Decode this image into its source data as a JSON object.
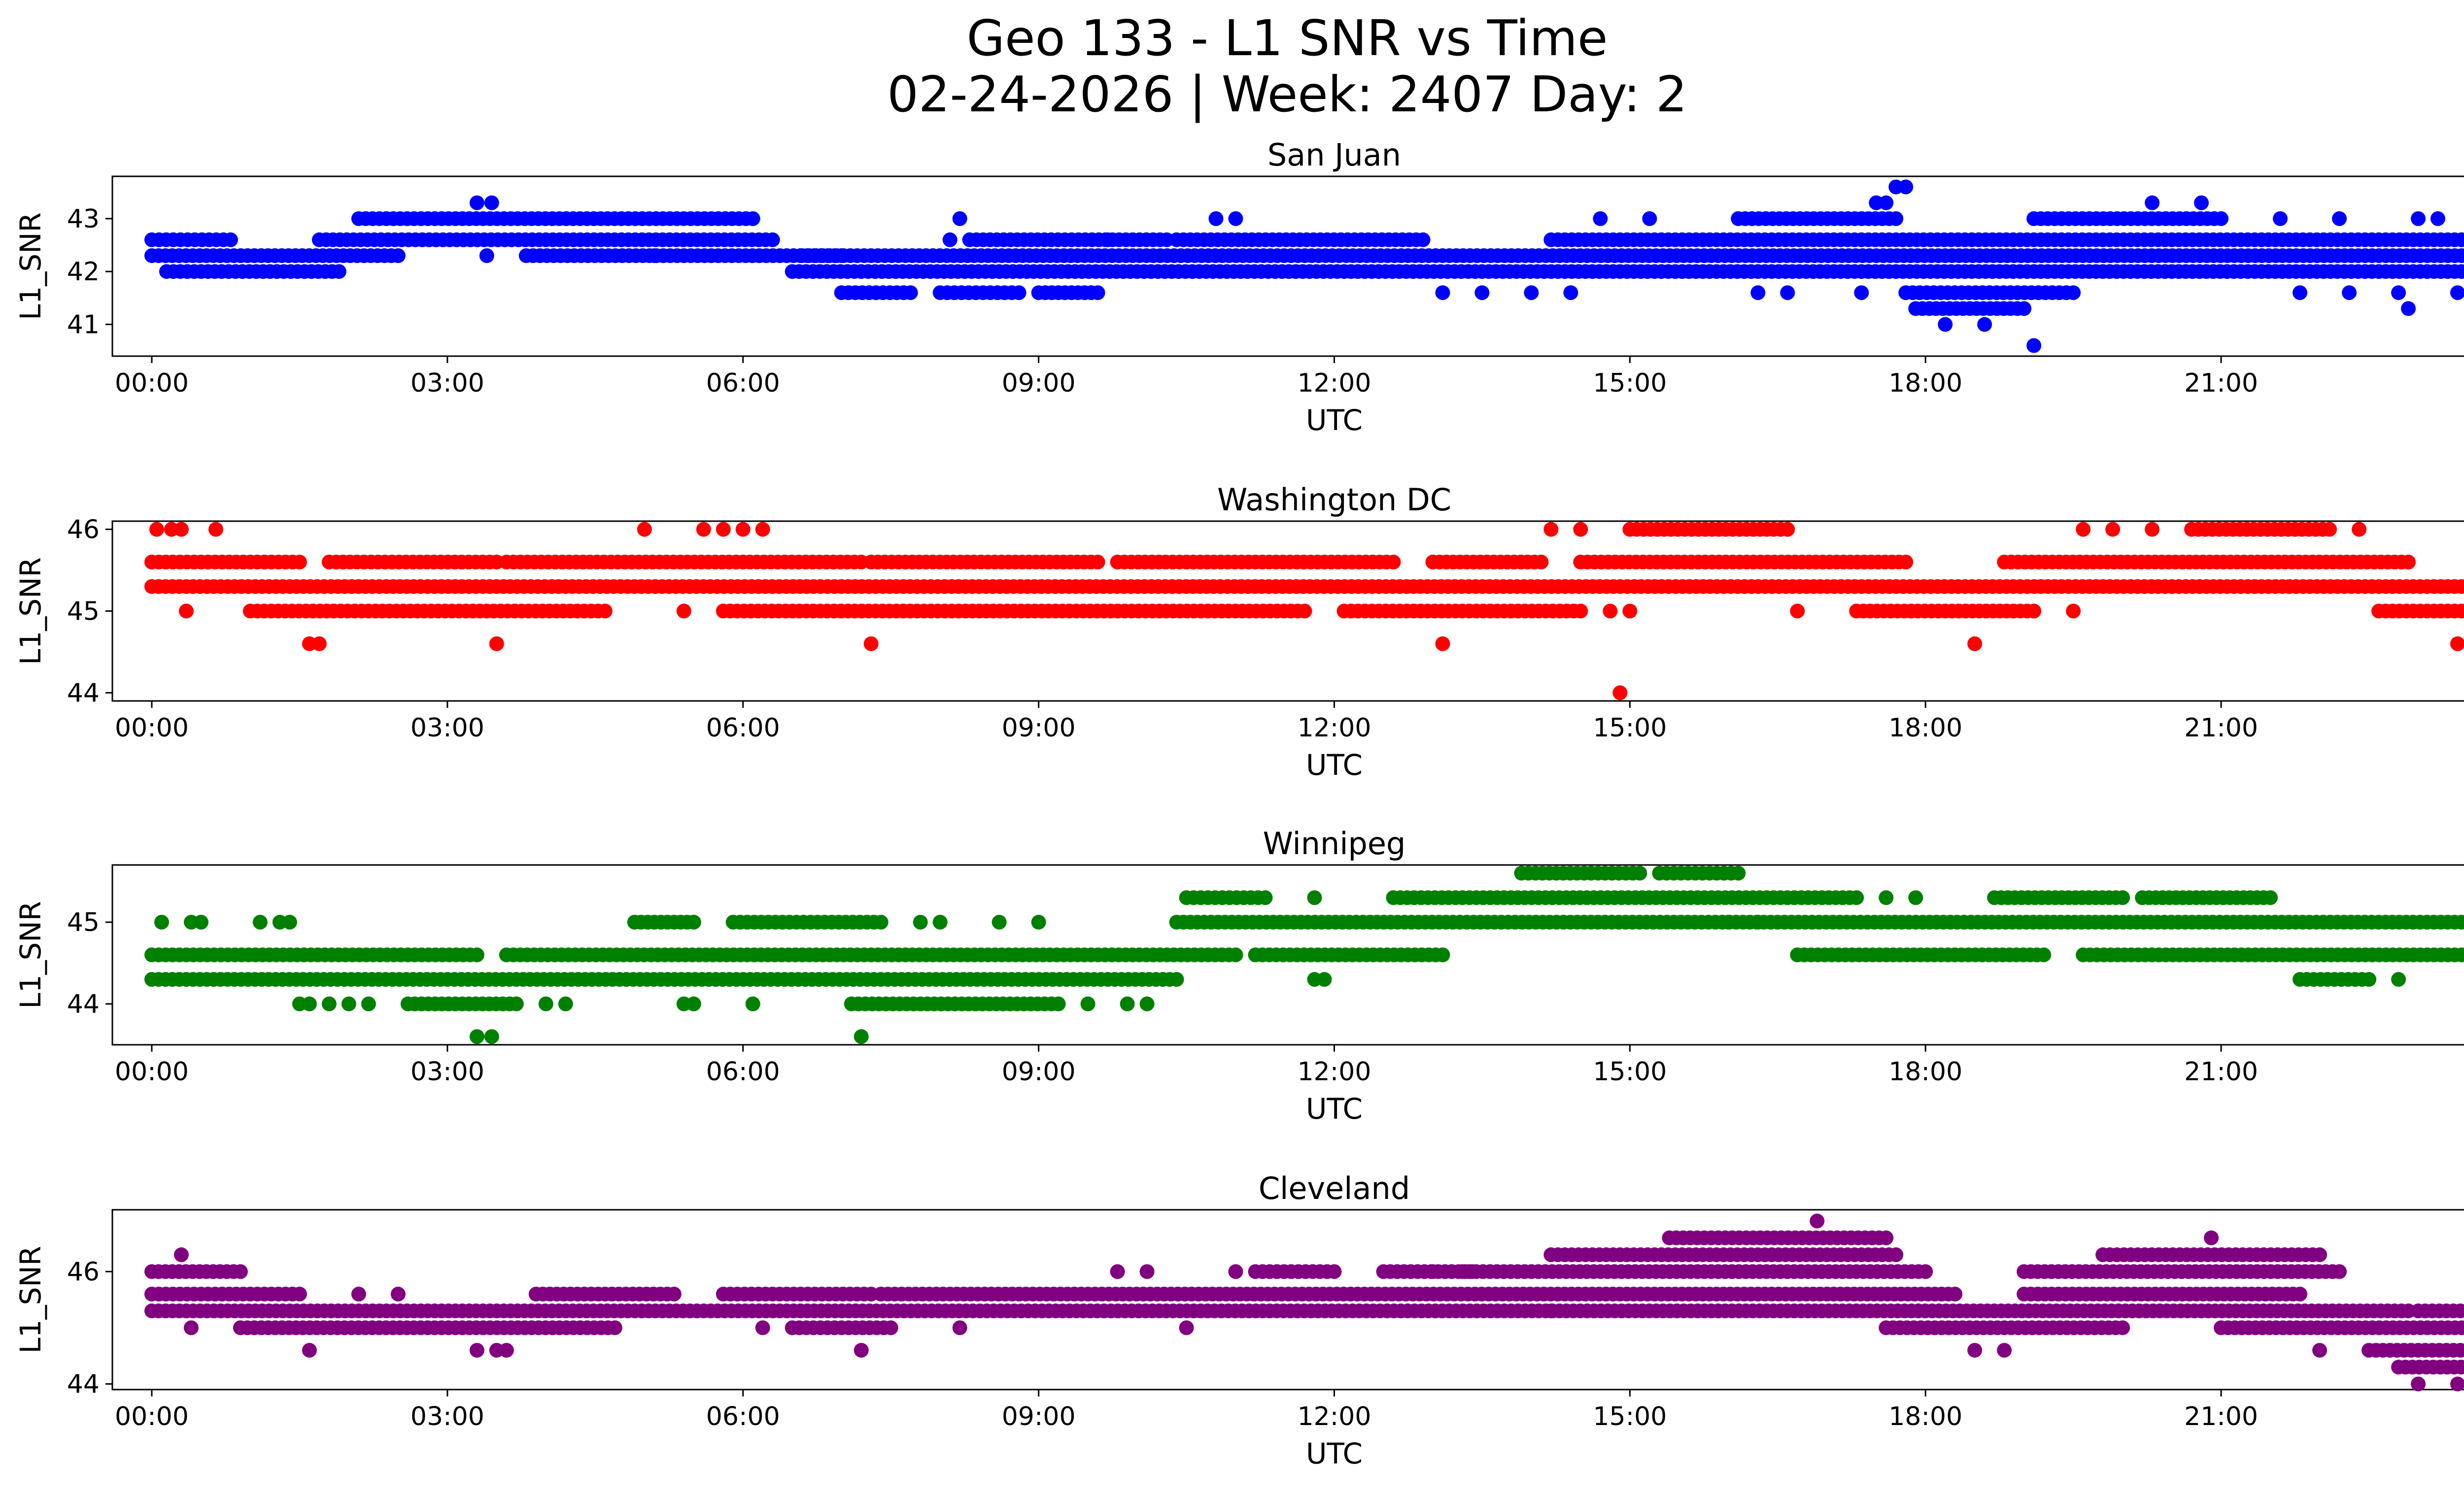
{
  "figure": {
    "title_line1": "Geo 133 - L1 SNR vs Time",
    "title_line2": "02-24-2026 | Week: 2407 Day: 2"
  },
  "chart_data": [
    {
      "type": "scatter",
      "title": "San Juan",
      "xlabel": "UTC",
      "ylabel": "L1_SNR",
      "color": "#0000ff",
      "xlim": [
        -0.4,
        24.4
      ],
      "ylim": [
        40.4,
        43.8
      ],
      "xticks": [
        {
          "value": 0,
          "label": "00:00"
        },
        {
          "value": 3,
          "label": "03:00"
        },
        {
          "value": 6,
          "label": "06:00"
        },
        {
          "value": 9,
          "label": "09:00"
        },
        {
          "value": 12,
          "label": "12:00"
        },
        {
          "value": 15,
          "label": "15:00"
        },
        {
          "value": 18,
          "label": "18:00"
        },
        {
          "value": 21,
          "label": "21:00"
        },
        {
          "value": 24,
          "label": "00:00"
        }
      ],
      "yticks": [
        {
          "value": 41,
          "label": "41"
        },
        {
          "value": 42,
          "label": "42"
        },
        {
          "value": 43,
          "label": "43"
        }
      ],
      "bands": [
        {
          "y": 42.6,
          "x_start": 0.0,
          "x_end": 0.8
        },
        {
          "y": 42.3,
          "x_start": 0.0,
          "x_end": 2.5
        },
        {
          "y": 42.0,
          "x_start": 0.15,
          "x_end": 1.9
        },
        {
          "y": 42.6,
          "x_start": 1.7,
          "x_end": 6.3
        },
        {
          "y": 43.0,
          "x_start": 2.1,
          "x_end": 6.1
        },
        {
          "y": 42.3,
          "x_start": 3.8,
          "x_end": 7.0
        },
        {
          "y": 42.0,
          "x_start": 6.5,
          "x_end": 24.0
        },
        {
          "y": 42.3,
          "x_start": 6.6,
          "x_end": 24.0
        },
        {
          "y": 42.6,
          "x_start": 8.3,
          "x_end": 10.3
        },
        {
          "y": 42.6,
          "x_start": 10.4,
          "x_end": 12.9
        },
        {
          "y": 42.6,
          "x_start": 14.2,
          "x_end": 24.0
        },
        {
          "y": 41.6,
          "x_start": 7.0,
          "x_end": 7.7
        },
        {
          "y": 41.6,
          "x_start": 8.0,
          "x_end": 8.8
        },
        {
          "y": 41.6,
          "x_start": 9.0,
          "x_end": 9.6
        },
        {
          "y": 41.6,
          "x_start": 17.8,
          "x_end": 19.5
        },
        {
          "y": 41.3,
          "x_start": 17.9,
          "x_end": 19.0
        },
        {
          "y": 43.0,
          "x_start": 16.1,
          "x_end": 17.7
        },
        {
          "y": 43.0,
          "x_start": 19.1,
          "x_end": 21.0
        }
      ],
      "points": [
        {
          "x": 3.3,
          "y": 43.3
        },
        {
          "x": 3.45,
          "y": 43.3
        },
        {
          "x": 3.4,
          "y": 42.3
        },
        {
          "x": 5.1,
          "y": 42.3
        },
        {
          "x": 8.2,
          "y": 43.0
        },
        {
          "x": 8.1,
          "y": 42.6
        },
        {
          "x": 9.7,
          "y": 42.6
        },
        {
          "x": 10.8,
          "y": 43.0
        },
        {
          "x": 11.0,
          "y": 43.0
        },
        {
          "x": 14.7,
          "y": 43.0
        },
        {
          "x": 15.2,
          "y": 43.0
        },
        {
          "x": 13.1,
          "y": 41.6
        },
        {
          "x": 13.5,
          "y": 41.6
        },
        {
          "x": 14.0,
          "y": 41.6
        },
        {
          "x": 14.4,
          "y": 41.6
        },
        {
          "x": 16.3,
          "y": 41.6
        },
        {
          "x": 16.6,
          "y": 41.6
        },
        {
          "x": 17.35,
          "y": 41.6
        },
        {
          "x": 17.5,
          "y": 43.3
        },
        {
          "x": 17.7,
          "y": 43.6
        },
        {
          "x": 17.8,
          "y": 43.6
        },
        {
          "x": 17.6,
          "y": 43.3
        },
        {
          "x": 18.2,
          "y": 41.0
        },
        {
          "x": 18.6,
          "y": 41.0
        },
        {
          "x": 19.1,
          "y": 40.6
        },
        {
          "x": 20.3,
          "y": 43.3
        },
        {
          "x": 20.8,
          "y": 43.3
        },
        {
          "x": 21.6,
          "y": 43.0
        },
        {
          "x": 22.2,
          "y": 43.0
        },
        {
          "x": 21.8,
          "y": 41.6
        },
        {
          "x": 22.3,
          "y": 41.6
        },
        {
          "x": 22.8,
          "y": 41.6
        },
        {
          "x": 22.9,
          "y": 41.3
        },
        {
          "x": 23.0,
          "y": 43.0
        },
        {
          "x": 23.2,
          "y": 43.0
        },
        {
          "x": 23.6,
          "y": 41.3
        },
        {
          "x": 23.4,
          "y": 41.6
        },
        {
          "x": 23.8,
          "y": 41.6
        },
        {
          "x": 24.0,
          "y": 41.6
        }
      ]
    },
    {
      "type": "scatter",
      "title": "Washington DC",
      "xlabel": "UTC",
      "ylabel": "L1_SNR",
      "color": "#ff0000",
      "xlim": [
        -0.4,
        24.4
      ],
      "ylim": [
        43.9,
        46.1
      ],
      "xticks": [
        {
          "value": 0,
          "label": "00:00"
        },
        {
          "value": 3,
          "label": "03:00"
        },
        {
          "value": 6,
          "label": "06:00"
        },
        {
          "value": 9,
          "label": "09:00"
        },
        {
          "value": 12,
          "label": "12:00"
        },
        {
          "value": 15,
          "label": "15:00"
        },
        {
          "value": 18,
          "label": "18:00"
        },
        {
          "value": 21,
          "label": "21:00"
        },
        {
          "value": 24,
          "label": "00:00"
        }
      ],
      "yticks": [
        {
          "value": 44,
          "label": "44"
        },
        {
          "value": 45,
          "label": "45"
        },
        {
          "value": 46,
          "label": "46"
        }
      ],
      "bands": [
        {
          "y": 45.3,
          "x_start": 0.0,
          "x_end": 24.0
        },
        {
          "y": 45.6,
          "x_start": 0.0,
          "x_end": 1.5
        },
        {
          "y": 45.6,
          "x_start": 1.8,
          "x_end": 3.5
        },
        {
          "y": 45.6,
          "x_start": 3.6,
          "x_end": 7.2
        },
        {
          "y": 45.6,
          "x_start": 7.3,
          "x_end": 9.6
        },
        {
          "y": 45.6,
          "x_start": 9.8,
          "x_end": 12.6
        },
        {
          "y": 45.6,
          "x_start": 13.0,
          "x_end": 14.1
        },
        {
          "y": 45.6,
          "x_start": 14.5,
          "x_end": 17.8
        },
        {
          "y": 45.6,
          "x_start": 18.8,
          "x_end": 22.9
        },
        {
          "y": 46.0,
          "x_start": 15.0,
          "x_end": 16.6
        },
        {
          "y": 46.0,
          "x_start": 20.7,
          "x_end": 22.1
        },
        {
          "y": 45.0,
          "x_start": 1.0,
          "x_end": 4.6
        },
        {
          "y": 45.0,
          "x_start": 5.8,
          "x_end": 11.7
        },
        {
          "y": 45.0,
          "x_start": 12.1,
          "x_end": 14.5
        },
        {
          "y": 45.0,
          "x_start": 17.3,
          "x_end": 19.1
        },
        {
          "y": 45.0,
          "x_start": 22.6,
          "x_end": 24.0
        }
      ],
      "points": [
        {
          "x": 0.05,
          "y": 46.0
        },
        {
          "x": 0.2,
          "y": 46.0
        },
        {
          "x": 0.3,
          "y": 46.0
        },
        {
          "x": 0.65,
          "y": 46.0
        },
        {
          "x": 0.35,
          "y": 45.0
        },
        {
          "x": 1.6,
          "y": 44.6
        },
        {
          "x": 1.7,
          "y": 44.6
        },
        {
          "x": 3.5,
          "y": 44.6
        },
        {
          "x": 5.0,
          "y": 46.0
        },
        {
          "x": 5.6,
          "y": 46.0
        },
        {
          "x": 5.8,
          "y": 46.0
        },
        {
          "x": 6.0,
          "y": 46.0
        },
        {
          "x": 6.2,
          "y": 46.0
        },
        {
          "x": 5.4,
          "y": 45.0
        },
        {
          "x": 7.3,
          "y": 44.6
        },
        {
          "x": 13.1,
          "y": 44.6
        },
        {
          "x": 14.2,
          "y": 46.0
        },
        {
          "x": 14.5,
          "y": 46.0
        },
        {
          "x": 14.9,
          "y": 44.0
        },
        {
          "x": 14.8,
          "y": 45.0
        },
        {
          "x": 15.0,
          "y": 45.0
        },
        {
          "x": 16.7,
          "y": 45.0
        },
        {
          "x": 18.5,
          "y": 44.6
        },
        {
          "x": 19.6,
          "y": 46.0
        },
        {
          "x": 19.9,
          "y": 46.0
        },
        {
          "x": 20.3,
          "y": 46.0
        },
        {
          "x": 22.4,
          "y": 46.0
        },
        {
          "x": 19.5,
          "y": 45.0
        },
        {
          "x": 23.4,
          "y": 44.6
        }
      ]
    },
    {
      "type": "scatter",
      "title": "Winnipeg",
      "xlabel": "UTC",
      "ylabel": "L1_SNR",
      "color": "#008000",
      "xlim": [
        -0.4,
        24.4
      ],
      "ylim": [
        43.5,
        45.7
      ],
      "xticks": [
        {
          "value": 0,
          "label": "00:00"
        },
        {
          "value": 3,
          "label": "03:00"
        },
        {
          "value": 6,
          "label": "06:00"
        },
        {
          "value": 9,
          "label": "09:00"
        },
        {
          "value": 12,
          "label": "12:00"
        },
        {
          "value": 15,
          "label": "15:00"
        },
        {
          "value": 18,
          "label": "18:00"
        },
        {
          "value": 21,
          "label": "21:00"
        },
        {
          "value": 24,
          "label": "00:00"
        }
      ],
      "yticks": [
        {
          "value": 44,
          "label": "44"
        },
        {
          "value": 45,
          "label": "45"
        }
      ],
      "bands": [
        {
          "y": 44.3,
          "x_start": 0.0,
          "x_end": 10.4
        },
        {
          "y": 44.6,
          "x_start": 0.0,
          "x_end": 3.3
        },
        {
          "y": 44.6,
          "x_start": 3.6,
          "x_end": 11.0
        },
        {
          "y": 44.6,
          "x_start": 11.2,
          "x_end": 13.1
        },
        {
          "y": 44.6,
          "x_start": 16.7,
          "x_end": 19.2
        },
        {
          "y": 44.6,
          "x_start": 19.6,
          "x_end": 24.0
        },
        {
          "y": 45.0,
          "x_start": 10.4,
          "x_end": 24.0
        },
        {
          "y": 45.0,
          "x_start": 4.9,
          "x_end": 5.5
        },
        {
          "y": 45.0,
          "x_start": 5.9,
          "x_end": 7.4
        },
        {
          "y": 45.3,
          "x_start": 10.5,
          "x_end": 11.3
        },
        {
          "y": 45.3,
          "x_start": 12.6,
          "x_end": 17.3
        },
        {
          "y": 45.3,
          "x_start": 18.7,
          "x_end": 20.0
        },
        {
          "y": 45.3,
          "x_start": 20.2,
          "x_end": 21.5
        },
        {
          "y": 45.6,
          "x_start": 13.9,
          "x_end": 15.1
        },
        {
          "y": 45.6,
          "x_start": 15.3,
          "x_end": 16.1
        },
        {
          "y": 44.0,
          "x_start": 2.6,
          "x_end": 3.7
        },
        {
          "y": 44.0,
          "x_start": 7.1,
          "x_end": 9.2
        },
        {
          "y": 44.3,
          "x_start": 21.8,
          "x_end": 22.5
        }
      ],
      "points": [
        {
          "x": 0.1,
          "y": 45.0
        },
        {
          "x": 0.4,
          "y": 45.0
        },
        {
          "x": 0.5,
          "y": 45.0
        },
        {
          "x": 1.1,
          "y": 45.0
        },
        {
          "x": 1.3,
          "y": 45.0
        },
        {
          "x": 1.4,
          "y": 45.0
        },
        {
          "x": 1.5,
          "y": 44.0
        },
        {
          "x": 1.6,
          "y": 44.0
        },
        {
          "x": 1.8,
          "y": 44.0
        },
        {
          "x": 2.0,
          "y": 44.0
        },
        {
          "x": 2.2,
          "y": 44.0
        },
        {
          "x": 3.3,
          "y": 43.6
        },
        {
          "x": 3.45,
          "y": 43.6
        },
        {
          "x": 4.0,
          "y": 44.0
        },
        {
          "x": 4.2,
          "y": 44.0
        },
        {
          "x": 5.4,
          "y": 44.0
        },
        {
          "x": 5.5,
          "y": 44.0
        },
        {
          "x": 6.1,
          "y": 44.0
        },
        {
          "x": 7.2,
          "y": 43.6
        },
        {
          "x": 7.8,
          "y": 45.0
        },
        {
          "x": 8.0,
          "y": 45.0
        },
        {
          "x": 8.6,
          "y": 45.0
        },
        {
          "x": 9.0,
          "y": 45.0
        },
        {
          "x": 9.5,
          "y": 44.0
        },
        {
          "x": 9.9,
          "y": 44.0
        },
        {
          "x": 10.1,
          "y": 44.0
        },
        {
          "x": 11.8,
          "y": 45.3
        },
        {
          "x": 11.8,
          "y": 44.3
        },
        {
          "x": 11.9,
          "y": 44.3
        },
        {
          "x": 17.6,
          "y": 45.3
        },
        {
          "x": 17.9,
          "y": 45.3
        },
        {
          "x": 16.0,
          "y": 45.0
        },
        {
          "x": 16.3,
          "y": 45.0
        },
        {
          "x": 22.8,
          "y": 44.3
        },
        {
          "x": 23.7,
          "y": 45.3
        },
        {
          "x": 23.9,
          "y": 45.3
        }
      ]
    },
    {
      "type": "scatter",
      "title": "Cleveland",
      "xlabel": "UTC",
      "ylabel": "L1_SNR",
      "color": "#800080",
      "xlim": [
        -0.4,
        24.4
      ],
      "ylim": [
        43.9,
        47.1
      ],
      "xticks": [
        {
          "value": 0,
          "label": "00:00"
        },
        {
          "value": 3,
          "label": "03:00"
        },
        {
          "value": 6,
          "label": "06:00"
        },
        {
          "value": 9,
          "label": "09:00"
        },
        {
          "value": 12,
          "label": "12:00"
        },
        {
          "value": 15,
          "label": "15:00"
        },
        {
          "value": 18,
          "label": "18:00"
        },
        {
          "value": 21,
          "label": "21:00"
        },
        {
          "value": 24,
          "label": "00:00"
        }
      ],
      "yticks": [
        {
          "value": 44,
          "label": "44"
        },
        {
          "value": 46,
          "label": "46"
        }
      ],
      "bands": [
        {
          "y": 45.6,
          "x_start": 0.0,
          "x_end": 1.5
        },
        {
          "y": 45.3,
          "x_start": 0.0,
          "x_end": 22.9
        },
        {
          "y": 46.0,
          "x_start": 0.0,
          "x_end": 0.9
        },
        {
          "y": 45.0,
          "x_start": 0.9,
          "x_end": 4.7
        },
        {
          "y": 45.0,
          "x_start": 6.5,
          "x_end": 7.5
        },
        {
          "y": 45.6,
          "x_start": 3.9,
          "x_end": 5.3
        },
        {
          "y": 45.6,
          "x_start": 5.8,
          "x_end": 7.3
        },
        {
          "y": 45.6,
          "x_start": 7.4,
          "x_end": 17.0
        },
        {
          "y": 45.6,
          "x_start": 17.0,
          "x_end": 18.3
        },
        {
          "y": 45.6,
          "x_start": 19.0,
          "x_end": 21.8
        },
        {
          "y": 46.0,
          "x_start": 11.2,
          "x_end": 12.0
        },
        {
          "y": 46.0,
          "x_start": 12.5,
          "x_end": 13.4
        },
        {
          "y": 46.0,
          "x_start": 13.3,
          "x_end": 18.0
        },
        {
          "y": 46.0,
          "x_start": 19.0,
          "x_end": 22.2
        },
        {
          "y": 46.3,
          "x_start": 14.2,
          "x_end": 17.7
        },
        {
          "y": 46.3,
          "x_start": 19.8,
          "x_end": 22.0
        },
        {
          "y": 46.6,
          "x_start": 15.4,
          "x_end": 17.6
        },
        {
          "y": 45.0,
          "x_start": 17.6,
          "x_end": 20.0
        },
        {
          "y": 45.0,
          "x_start": 21.0,
          "x_end": 24.0
        },
        {
          "y": 44.6,
          "x_start": 22.5,
          "x_end": 24.0
        },
        {
          "y": 44.3,
          "x_start": 22.8,
          "x_end": 24.0
        },
        {
          "y": 45.3,
          "x_start": 23.0,
          "x_end": 24.0
        }
      ],
      "points": [
        {
          "x": 0.3,
          "y": 46.3
        },
        {
          "x": 0.4,
          "y": 45.0
        },
        {
          "x": 1.6,
          "y": 44.6
        },
        {
          "x": 2.1,
          "y": 45.6
        },
        {
          "x": 2.5,
          "y": 45.6
        },
        {
          "x": 3.3,
          "y": 44.6
        },
        {
          "x": 3.5,
          "y": 44.6
        },
        {
          "x": 3.6,
          "y": 44.6
        },
        {
          "x": 6.2,
          "y": 45.0
        },
        {
          "x": 7.2,
          "y": 44.6
        },
        {
          "x": 8.2,
          "y": 45.0
        },
        {
          "x": 9.8,
          "y": 46.0
        },
        {
          "x": 10.1,
          "y": 46.0
        },
        {
          "x": 10.5,
          "y": 45.0
        },
        {
          "x": 11.0,
          "y": 46.0
        },
        {
          "x": 13.0,
          "y": 46.0
        },
        {
          "x": 14.2,
          "y": 45.3
        },
        {
          "x": 16.9,
          "y": 46.9
        },
        {
          "x": 18.5,
          "y": 44.6
        },
        {
          "x": 18.8,
          "y": 44.6
        },
        {
          "x": 20.9,
          "y": 46.6
        },
        {
          "x": 22.0,
          "y": 44.6
        },
        {
          "x": 23.0,
          "y": 44.0
        },
        {
          "x": 23.4,
          "y": 44.0
        },
        {
          "x": 23.6,
          "y": 44.0
        },
        {
          "x": 24.0,
          "y": 45.6
        },
        {
          "x": 24.0,
          "y": 44.3
        }
      ]
    }
  ]
}
